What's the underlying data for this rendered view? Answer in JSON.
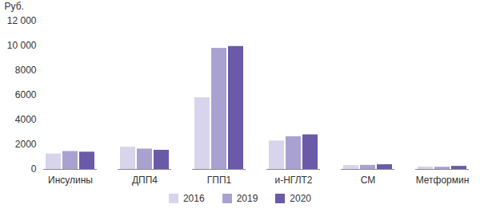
{
  "chart_data": {
    "type": "bar",
    "y_label": "Руб.",
    "categories": [
      "Инсулины",
      "ДПП4",
      "ГПП1",
      "и-НГЛТ2",
      "СМ",
      "Метформин"
    ],
    "series": [
      {
        "name": "2016",
        "color": "#d8d4eb",
        "values": [
          1250,
          1800,
          5800,
          2300,
          320,
          200
        ]
      },
      {
        "name": "2019",
        "color": "#a9a2d1",
        "values": [
          1450,
          1650,
          9800,
          2650,
          330,
          180
        ]
      },
      {
        "name": "2020",
        "color": "#6a5aa8",
        "values": [
          1400,
          1550,
          9950,
          2800,
          380,
          250
        ]
      }
    ],
    "ylim": [
      0,
      12000
    ],
    "yticks": [
      0,
      2000,
      4000,
      6000,
      8000,
      {
        "value": 10000,
        "label": "10 000"
      },
      {
        "value": 12000,
        "label": "12 000"
      }
    ],
    "grid": false,
    "legend": "bottom"
  }
}
